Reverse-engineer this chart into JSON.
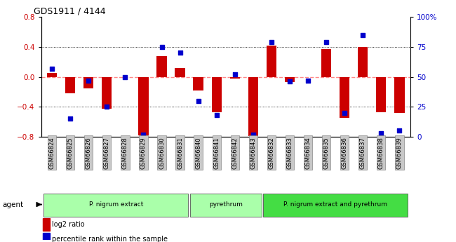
{
  "title": "GDS1911 / 4144",
  "samples": [
    "GSM66824",
    "GSM66825",
    "GSM66826",
    "GSM66827",
    "GSM66828",
    "GSM66829",
    "GSM66830",
    "GSM66831",
    "GSM66840",
    "GSM66841",
    "GSM66842",
    "GSM66843",
    "GSM66832",
    "GSM66833",
    "GSM66834",
    "GSM66835",
    "GSM66836",
    "GSM66837",
    "GSM66838",
    "GSM66839"
  ],
  "log2_ratio": [
    0.05,
    -0.22,
    -0.15,
    -0.43,
    0.0,
    -0.78,
    0.28,
    0.12,
    -0.18,
    -0.47,
    -0.02,
    -0.79,
    0.42,
    -0.07,
    0.0,
    0.37,
    -0.55,
    0.4,
    -0.47,
    -0.48
  ],
  "percentile": [
    57,
    15,
    47,
    25,
    50,
    2,
    75,
    70,
    30,
    18,
    52,
    2,
    79,
    46,
    47,
    79,
    20,
    85,
    3,
    5
  ],
  "groups_info": [
    {
      "label": "P. nigrum extract",
      "start": 0,
      "end": 7,
      "color": "#aaffaa"
    },
    {
      "label": "pyrethrum",
      "start": 8,
      "end": 11,
      "color": "#aaffaa"
    },
    {
      "label": "P. nigrum extract and pyrethrum",
      "start": 12,
      "end": 19,
      "color": "#44dd44"
    }
  ],
  "bar_color": "#CC0000",
  "dot_color": "#0000CC",
  "zero_line_color": "#FF8888",
  "grid_color": "#000000",
  "ylim": [
    -0.8,
    0.8
  ],
  "y2lim": [
    0,
    100
  ],
  "yticks_left": [
    -0.8,
    -0.4,
    0.0,
    0.4,
    0.8
  ],
  "y2ticks": [
    0,
    25,
    50,
    75,
    100
  ],
  "tick_label_bg": "#C8C8C8"
}
